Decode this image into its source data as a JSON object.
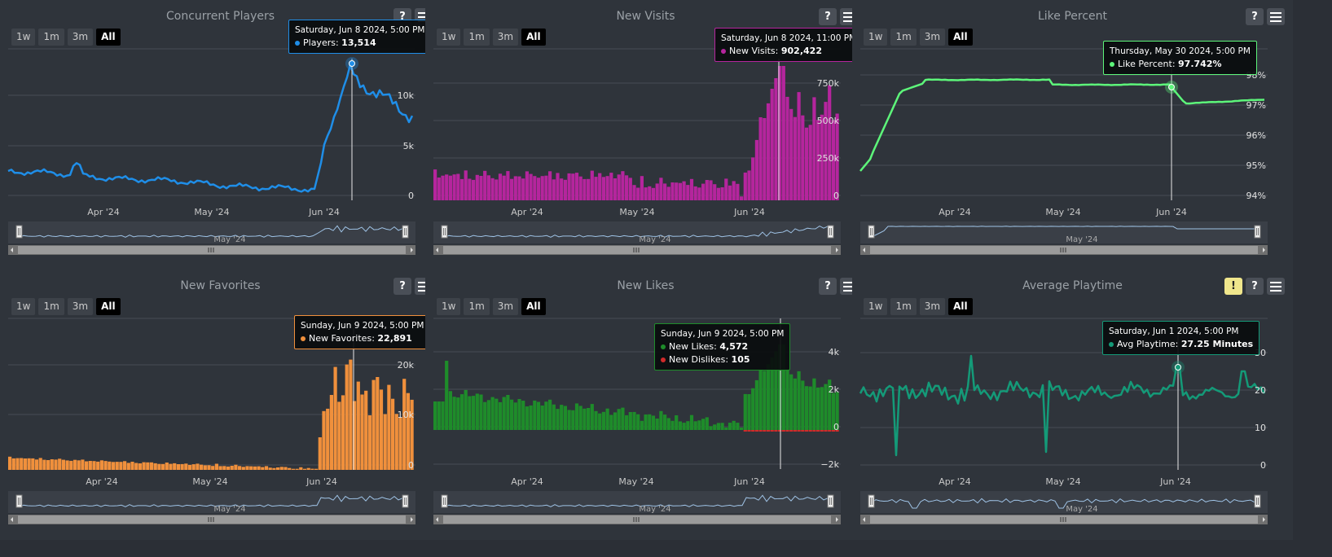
{
  "panels": [
    {
      "id": "concurrent-players",
      "title": "Concurrent Players",
      "buttons": [
        "help",
        "menu"
      ],
      "ranges": [
        "1w",
        "1m",
        "3m",
        "All"
      ],
      "active_range": "All",
      "type": "line",
      "color": "#1f8ee8",
      "y_ticks": [
        "10k",
        "5k",
        "0"
      ],
      "x_ticks": [
        "Apr '24",
        "May '24",
        "Jun '24"
      ],
      "navigator_label": "May '24",
      "tooltip": {
        "date": "Saturday, Jun 8 2024, 5:00 PM",
        "rows": [
          {
            "label": "Players",
            "value": "13,514",
            "color": "#1f8ee8"
          }
        ]
      }
    },
    {
      "id": "new-visits",
      "title": "New Visits",
      "buttons": [
        "help",
        "menu"
      ],
      "ranges": [
        "1w",
        "1m",
        "3m",
        "All"
      ],
      "active_range": "All",
      "type": "bar",
      "color": "#b5259d",
      "y_ticks": [
        "750k",
        "500k",
        "250k",
        "0"
      ],
      "x_ticks": [
        "Apr '24",
        "May '24",
        "Jun '24"
      ],
      "navigator_label": "May '24",
      "tooltip": {
        "date": "Saturday, Jun 8 2024, 11:00 PM",
        "rows": [
          {
            "label": "New Visits",
            "value": "902,422",
            "color": "#b5259d"
          }
        ]
      }
    },
    {
      "id": "like-percent",
      "title": "Like Percent",
      "buttons": [
        "help",
        "menu"
      ],
      "ranges": [
        "1w",
        "1m",
        "3m",
        "All"
      ],
      "active_range": "All",
      "type": "line",
      "color": "#5df57a",
      "y_ticks": [
        "98%",
        "97%",
        "96%",
        "95%",
        "94%"
      ],
      "x_ticks": [
        "Apr '24",
        "May '24",
        "Jun '24"
      ],
      "navigator_label": "May '24",
      "tooltip": {
        "date": "Thursday, May 30 2024, 5:00 PM",
        "rows": [
          {
            "label": "Like Percent",
            "value": "97.742%",
            "color": "#5df57a"
          }
        ]
      }
    },
    {
      "id": "new-favorites",
      "title": "New Favorites",
      "buttons": [
        "help",
        "menu"
      ],
      "ranges": [
        "1w",
        "1m",
        "3m",
        "All"
      ],
      "active_range": "All",
      "type": "bar",
      "color": "#f0903c",
      "y_ticks": [
        "20k",
        "10k",
        "0"
      ],
      "x_ticks": [
        "Apr '24",
        "May '24",
        "Jun '24"
      ],
      "navigator_label": "May '24",
      "tooltip": {
        "date": "Sunday, Jun 9 2024, 5:00 PM",
        "rows": [
          {
            "label": "New Favorites",
            "value": "22,891",
            "color": "#f0903c"
          }
        ]
      }
    },
    {
      "id": "new-likes",
      "title": "New Likes",
      "buttons": [
        "help",
        "menu"
      ],
      "ranges": [
        "1w",
        "1m",
        "3m",
        "All"
      ],
      "active_range": "All",
      "type": "bar",
      "color": "#1e8c2a",
      "y_ticks": [
        "4k",
        "2k",
        "0",
        "−2k"
      ],
      "x_ticks": [
        "Apr '24",
        "May '24",
        "Jun '24"
      ],
      "navigator_label": "May '24",
      "tooltip": {
        "date": "Sunday, Jun 9 2024, 5:00 PM",
        "rows": [
          {
            "label": "New Likes",
            "value": "4,572",
            "color": "#1e8c2a"
          },
          {
            "label": "New Dislikes",
            "value": "105",
            "color": "#d02a2a"
          }
        ]
      }
    },
    {
      "id": "average-playtime",
      "title": "Average Playtime",
      "buttons": [
        "warning",
        "help",
        "menu"
      ],
      "ranges": [
        "1w",
        "1m",
        "3m",
        "All"
      ],
      "active_range": "All",
      "type": "line",
      "color": "#149a78",
      "y_ticks": [
        "30",
        "20",
        "10",
        "0"
      ],
      "x_ticks": [
        "Apr '24",
        "May '24",
        "Jun '24"
      ],
      "navigator_label": "May '24",
      "tooltip": {
        "date": "Saturday, Jun 1 2024, 5:00 PM",
        "rows": [
          {
            "label": "Avg Playtime",
            "value": "27.25 Minutes",
            "color": "#149a78"
          }
        ]
      }
    }
  ]
}
